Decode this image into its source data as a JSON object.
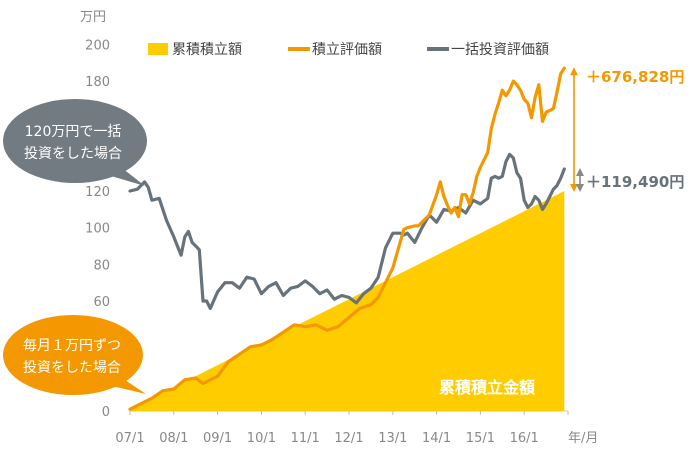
{
  "chart_data": {
    "type": "area",
    "y_unit": "万円",
    "x_unit": "年/月",
    "categories": [
      "07/1",
      "08/1",
      "09/1",
      "10/1",
      "11/1",
      "12/1",
      "13/1",
      "14/1",
      "15/1",
      "16/1"
    ],
    "yticks": [
      0,
      20,
      40,
      60,
      80,
      100,
      120,
      140,
      160,
      180,
      200
    ],
    "ylim": [
      0,
      200
    ],
    "legend_position": "top",
    "series": [
      {
        "name": "累積積立額",
        "color": "#FFCC00",
        "x": [
          0,
          119
        ],
        "values": [
          1,
          120
        ]
      },
      {
        "name": "積立評価額",
        "color": "#F39800",
        "x": [
          0,
          3,
          6,
          9,
          12,
          15,
          18,
          20,
          22,
          24,
          27,
          30,
          33,
          36,
          39,
          42,
          45,
          48,
          51,
          54,
          57,
          60,
          63,
          66,
          68,
          70,
          72,
          75,
          76,
          78,
          79,
          80,
          82,
          84,
          85,
          86,
          87,
          88,
          89,
          90,
          91,
          92,
          93,
          94,
          95,
          96,
          97,
          98,
          99,
          100,
          101,
          102,
          103,
          104,
          105,
          106,
          107,
          108,
          109,
          110,
          111,
          112,
          113,
          114,
          115,
          116,
          117,
          118,
          119
        ],
        "values": [
          1,
          4,
          7,
          11,
          12,
          17,
          18,
          15,
          17,
          19,
          27,
          31,
          35,
          36,
          39,
          43,
          47,
          46,
          47,
          44,
          46,
          51,
          56,
          58,
          62,
          70,
          78,
          99,
          100,
          101,
          101,
          103,
          107,
          118,
          125,
          117,
          112,
          108,
          111,
          106,
          118,
          118,
          113,
          119,
          128,
          133,
          137,
          141,
          154,
          162,
          168,
          175,
          172,
          175,
          180,
          178,
          175,
          170,
          168,
          160,
          171,
          178,
          158,
          163,
          164,
          165,
          174,
          184,
          187
        ]
      },
      {
        "name": "一括投資評価額",
        "color": "#68727A",
        "x": [
          0,
          2,
          4,
          5,
          6,
          8,
          10,
          12,
          13,
          14,
          15,
          16,
          17,
          18,
          19,
          20,
          21,
          22,
          24,
          26,
          28,
          30,
          32,
          34,
          36,
          38,
          40,
          42,
          44,
          46,
          48,
          50,
          52,
          54,
          56,
          58,
          60,
          62,
          64,
          66,
          68,
          70,
          72,
          74,
          75,
          76,
          78,
          80,
          82,
          84,
          86,
          88,
          90,
          92,
          94,
          96,
          98,
          99,
          100,
          101,
          102,
          103,
          104,
          105,
          106,
          107,
          108,
          109,
          110,
          111,
          112,
          113,
          114,
          115,
          116,
          117,
          118,
          119
        ],
        "values": [
          120,
          121,
          125,
          122,
          115,
          116,
          104,
          95,
          90,
          85,
          95,
          98,
          92,
          90,
          88,
          60,
          60,
          56,
          65,
          70,
          70,
          67,
          73,
          72,
          64,
          68,
          70,
          63,
          67,
          68,
          71,
          68,
          64,
          66,
          61,
          63,
          62,
          59,
          64,
          67,
          73,
          89,
          97,
          97,
          96,
          97,
          92,
          100,
          107,
          103,
          110,
          109,
          111,
          108,
          115,
          113,
          116,
          127,
          128,
          127,
          128,
          136,
          140,
          138,
          130,
          127,
          115,
          111,
          113,
          117,
          115,
          110,
          113,
          117,
          121,
          123,
          127,
          132
        ]
      }
    ],
    "annotations": {
      "area_label": "累積積立金額",
      "gain_orange": "＋676,828円",
      "gain_gray": "＋119,490円"
    }
  },
  "bubbles": {
    "lump_sum": [
      "120万円で一括",
      "投資をした場合"
    ],
    "monthly": [
      "毎月１万円ずつ",
      "投資をした場合"
    ]
  }
}
